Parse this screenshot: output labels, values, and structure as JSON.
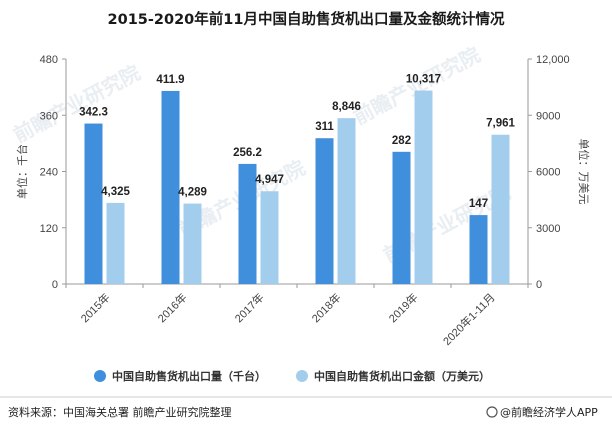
{
  "chart_data": {
    "type": "bar",
    "title": "2015-2020年前11月中国自助售货机出口量及金额统计情况",
    "categories": [
      "2015年",
      "2016年",
      "2017年",
      "2018年",
      "2019年",
      "2020年1-11月"
    ],
    "series": [
      {
        "name": "中国自助售货机出口量（千台）",
        "axis": "left",
        "color": "#3f8fdc",
        "values": [
          342.3,
          411.9,
          256.2,
          311,
          282,
          147
        ],
        "labels": [
          "342.3",
          "411.9",
          "256.2",
          "311",
          "282",
          "147"
        ]
      },
      {
        "name": "中国自助售货机出口金额（万美元）",
        "axis": "right",
        "color": "#a3cdec",
        "values": [
          4325,
          4289,
          4947,
          8846,
          10317,
          7961
        ],
        "labels": [
          "4,325",
          "4,289",
          "4,947",
          "8,846",
          "10,317",
          "7,961"
        ]
      }
    ],
    "y_left": {
      "label": "单位：千台",
      "ylim": [
        0,
        480
      ],
      "ticks": [
        "0",
        "120",
        "240",
        "360",
        "480"
      ]
    },
    "y_right": {
      "label": "单位：万美元",
      "ylim": [
        0,
        12000
      ],
      "ticks": [
        "0",
        "3000",
        "6000",
        "9000",
        "12,000"
      ]
    },
    "grid": false,
    "legend": "bottom"
  },
  "footer": {
    "source": "资料来源：中国海关总署 前瞻产业研究院整理",
    "brand": "@前瞻经济学人APP"
  },
  "watermark": "前瞻产业研究院"
}
